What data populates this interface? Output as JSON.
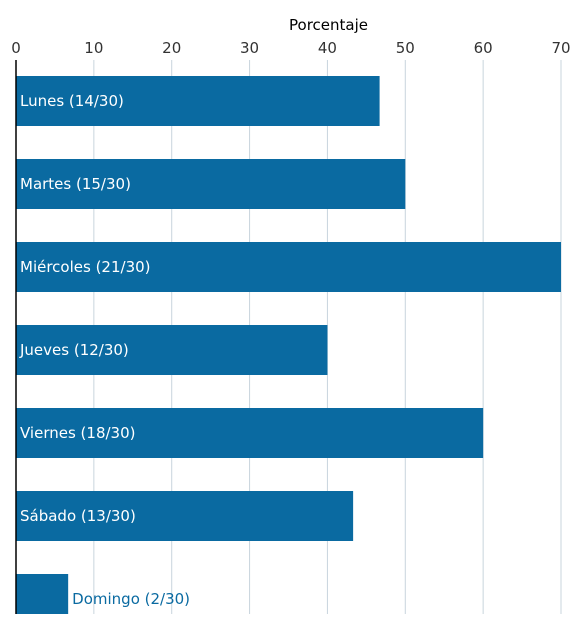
{
  "chart_data": {
    "type": "bar",
    "orientation": "horizontal",
    "xlabel": "Porcentaje",
    "xlim": [
      0,
      70
    ],
    "xticks": [
      0,
      10,
      20,
      30,
      40,
      50,
      60,
      70
    ],
    "xtick_labels": [
      "0",
      "10",
      "20",
      "30",
      "40",
      "50",
      "60",
      "70"
    ],
    "grid": true,
    "categories": [
      "Lunes (14/30)",
      "Martes (15/30)",
      "Miércoles (21/30)",
      "Jueves (12/30)",
      "Viernes (18/30)",
      "Sábado (13/30)",
      "Domingo (2/30)"
    ],
    "values": [
      46.7,
      50.0,
      70.0,
      40.0,
      60.0,
      43.3,
      6.7
    ],
    "bar_color": "#0a6aa1",
    "grid_color": "#c8d4dd"
  }
}
